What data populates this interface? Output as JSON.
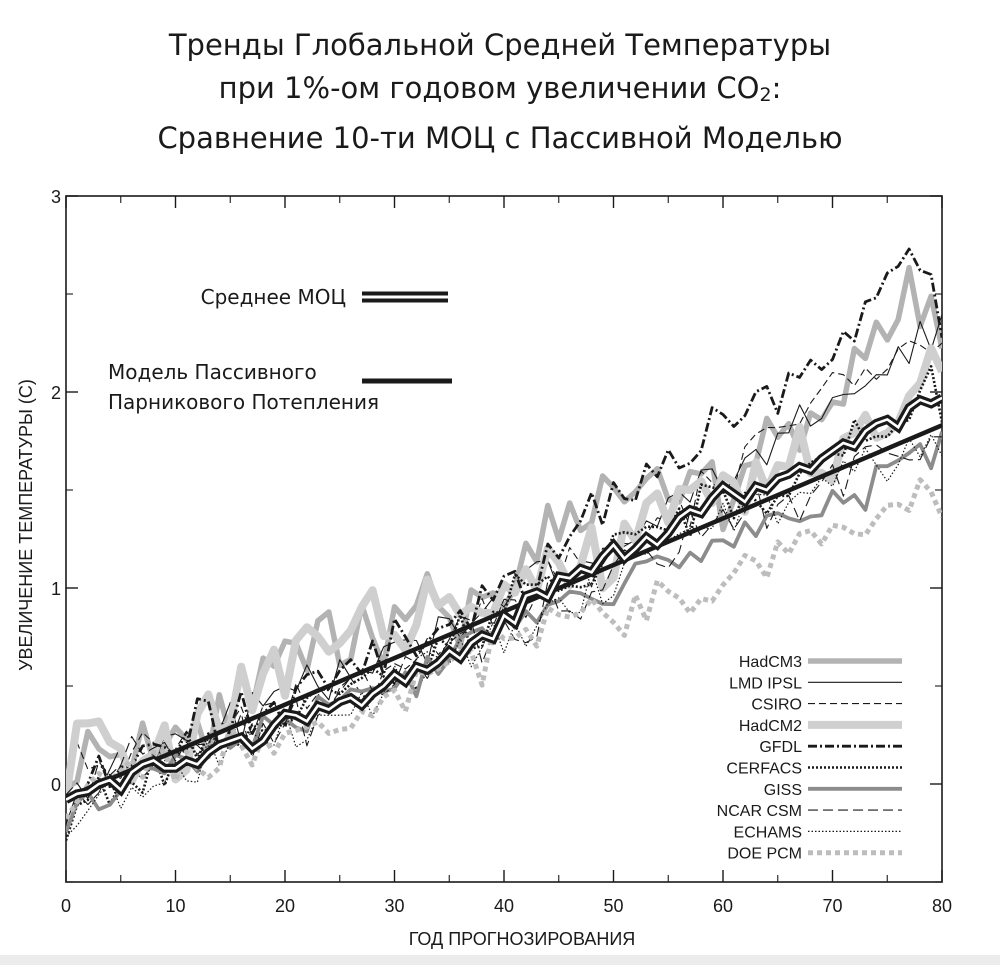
{
  "chart_data": {
    "type": "line",
    "title": {
      "line1": "Тренды Глобальной Средней Температуры",
      "line2_pre": "при 1%-ом годовом увеличении CO",
      "line2_sub": "2",
      "line2_post": ":",
      "line3": "Сравнение 10-ти МОЦ с Пассивной Моделью"
    },
    "xlabel": "ГОД ПРОГНОЗИРОВАНИЯ",
    "ylabel": "УВЕЛИЧЕНИЕ ТЕМПЕРАТУРЫ (С)",
    "xlim": [
      0,
      80
    ],
    "ylim": [
      -0.5,
      3
    ],
    "xticks": [
      0,
      10,
      20,
      30,
      40,
      50,
      60,
      70,
      80
    ],
    "xtick_labels": [
      "0",
      "10",
      "20",
      "30",
      "40",
      "50",
      "60",
      "70",
      "80"
    ],
    "yticks": [
      0,
      1,
      2,
      3
    ],
    "ytick_labels": [
      "0",
      "1",
      "2",
      "3"
    ],
    "legend_top": {
      "mean_label": "Среднее МОЦ",
      "passive_label_1": "Модель Пассивного",
      "passive_label_2": "Парникового Потепления"
    },
    "legend": [
      "HadCM3",
      "LMD IPSL",
      "CSIRO",
      "HadCM2",
      "GFDL",
      "CERFACS",
      "GISS",
      "NCAR CSM",
      "ECHAMS",
      "DOE PCM"
    ],
    "passive_model": {
      "name": "Модель Пассивного Парникового Потепления",
      "x": [
        0,
        80
      ],
      "y": [
        -0.07,
        1.83
      ]
    },
    "series": [
      {
        "name": "HadCM3",
        "style": "thick-gray",
        "anchors": [
          [
            0,
            0.15
          ],
          [
            10,
            0.25
          ],
          [
            20,
            0.6
          ],
          [
            30,
            0.75
          ],
          [
            40,
            1.05
          ],
          [
            50,
            1.45
          ],
          [
            60,
            1.55
          ],
          [
            70,
            1.95
          ],
          [
            77,
            2.55
          ],
          [
            80,
            2.2
          ]
        ],
        "noise": 0.16,
        "seed": 11
      },
      {
        "name": "LMD IPSL",
        "style": "thin-solid",
        "anchors": [
          [
            0,
            -0.05
          ],
          [
            10,
            0.2
          ],
          [
            20,
            0.45
          ],
          [
            30,
            0.65
          ],
          [
            40,
            0.95
          ],
          [
            50,
            1.2
          ],
          [
            60,
            1.6
          ],
          [
            70,
            1.9
          ],
          [
            80,
            2.3
          ]
        ],
        "noise": 0.1,
        "seed": 23
      },
      {
        "name": "CSIRO",
        "style": "thin-dash",
        "anchors": [
          [
            0,
            0.05
          ],
          [
            10,
            0.2
          ],
          [
            20,
            0.4
          ],
          [
            30,
            0.6
          ],
          [
            40,
            0.9
          ],
          [
            50,
            1.15
          ],
          [
            60,
            1.55
          ],
          [
            70,
            2.05
          ],
          [
            80,
            2.3
          ]
        ],
        "noise": 0.1,
        "seed": 37
      },
      {
        "name": "HadCM2",
        "style": "thick-lightgray",
        "anchors": [
          [
            0,
            0.1
          ],
          [
            10,
            0.2
          ],
          [
            20,
            0.6
          ],
          [
            30,
            0.85
          ],
          [
            40,
            0.95
          ],
          [
            50,
            1.25
          ],
          [
            60,
            1.55
          ],
          [
            70,
            1.7
          ],
          [
            80,
            2.2
          ]
        ],
        "noise": 0.15,
        "seed": 41
      },
      {
        "name": "GFDL",
        "style": "dashdot",
        "anchors": [
          [
            0,
            0.0
          ],
          [
            10,
            0.25
          ],
          [
            20,
            0.45
          ],
          [
            30,
            0.7
          ],
          [
            40,
            0.95
          ],
          [
            50,
            1.5
          ],
          [
            60,
            1.8
          ],
          [
            70,
            2.2
          ],
          [
            77,
            2.65
          ],
          [
            80,
            2.4
          ]
        ],
        "noise": 0.12,
        "seed": 53
      },
      {
        "name": "CERFACS",
        "style": "dotted-thick",
        "anchors": [
          [
            0,
            -0.1
          ],
          [
            10,
            0.1
          ],
          [
            20,
            0.35
          ],
          [
            30,
            0.55
          ],
          [
            40,
            0.85
          ],
          [
            50,
            1.2
          ],
          [
            60,
            1.45
          ],
          [
            70,
            1.6
          ],
          [
            80,
            2.0
          ]
        ],
        "noise": 0.12,
        "seed": 61
      },
      {
        "name": "GISS",
        "style": "medium-gray",
        "anchors": [
          [
            0,
            -0.15
          ],
          [
            10,
            0.1
          ],
          [
            20,
            0.3
          ],
          [
            30,
            0.5
          ],
          [
            40,
            0.8
          ],
          [
            50,
            1.0
          ],
          [
            60,
            1.25
          ],
          [
            70,
            1.4
          ],
          [
            80,
            1.75
          ]
        ],
        "noise": 0.08,
        "seed": 71
      },
      {
        "name": "NCAR CSM",
        "style": "long-dash",
        "anchors": [
          [
            0,
            0.0
          ],
          [
            10,
            0.15
          ],
          [
            20,
            0.3
          ],
          [
            30,
            0.55
          ],
          [
            40,
            0.8
          ],
          [
            50,
            1.05
          ],
          [
            60,
            1.35
          ],
          [
            70,
            1.55
          ],
          [
            80,
            1.75
          ]
        ],
        "noise": 0.11,
        "seed": 83
      },
      {
        "name": "ECHAMS",
        "style": "fine-dotted",
        "anchors": [
          [
            0,
            -0.2
          ],
          [
            10,
            0.1
          ],
          [
            20,
            0.3
          ],
          [
            30,
            0.5
          ],
          [
            40,
            0.75
          ],
          [
            50,
            1.05
          ],
          [
            60,
            1.35
          ],
          [
            70,
            1.55
          ],
          [
            80,
            1.8
          ]
        ],
        "noise": 0.1,
        "seed": 97
      },
      {
        "name": "DOE PCM",
        "style": "dotted-gray",
        "anchors": [
          [
            0,
            -0.05
          ],
          [
            10,
            0.1
          ],
          [
            20,
            0.2
          ],
          [
            30,
            0.45
          ],
          [
            40,
            0.7
          ],
          [
            50,
            0.9
          ],
          [
            60,
            1.05
          ],
          [
            70,
            1.3
          ],
          [
            80,
            1.5
          ]
        ],
        "noise": 0.1,
        "seed": 101
      }
    ],
    "mean_series": {
      "name": "Среднее МОЦ",
      "x": [
        0,
        1,
        2,
        3,
        4,
        5,
        6,
        7,
        8,
        9,
        10,
        11,
        12,
        13,
        14,
        15,
        16,
        17,
        18,
        19,
        20,
        21,
        22,
        23,
        24,
        25,
        26,
        27,
        28,
        29,
        30,
        31,
        32,
        33,
        34,
        35,
        36,
        37,
        38,
        39,
        40,
        41,
        42,
        43,
        44,
        45,
        46,
        47,
        48,
        49,
        50,
        51,
        52,
        53,
        54,
        55,
        56,
        57,
        58,
        59,
        60,
        61,
        62,
        63,
        64,
        65,
        66,
        67,
        68,
        69,
        70,
        71,
        72,
        73,
        74,
        75,
        76,
        77,
        78,
        79,
        80
      ],
      "y": [
        -0.08,
        -0.05,
        -0.04,
        0.0,
        0.02,
        -0.03,
        0.06,
        0.1,
        0.12,
        0.08,
        0.08,
        0.12,
        0.1,
        0.16,
        0.2,
        0.22,
        0.24,
        0.18,
        0.22,
        0.3,
        0.36,
        0.35,
        0.32,
        0.4,
        0.38,
        0.42,
        0.44,
        0.4,
        0.46,
        0.5,
        0.56,
        0.52,
        0.6,
        0.58,
        0.62,
        0.68,
        0.64,
        0.72,
        0.76,
        0.74,
        0.86,
        0.82,
        0.96,
        0.98,
        0.95,
        1.06,
        1.05,
        1.1,
        1.08,
        1.16,
        1.22,
        1.15,
        1.2,
        1.26,
        1.22,
        1.28,
        1.36,
        1.4,
        1.38,
        1.46,
        1.52,
        1.48,
        1.44,
        1.52,
        1.5,
        1.56,
        1.58,
        1.62,
        1.6,
        1.66,
        1.7,
        1.74,
        1.72,
        1.8,
        1.84,
        1.86,
        1.82,
        1.92,
        1.96,
        1.94,
        1.97
      ]
    }
  }
}
